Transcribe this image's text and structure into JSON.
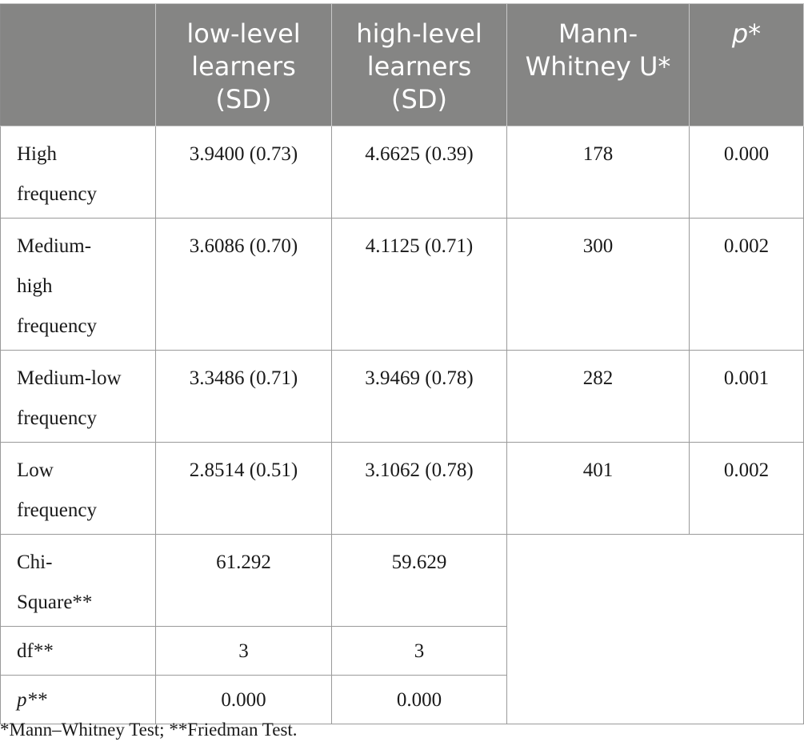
{
  "table": {
    "headers": [
      {
        "text": "",
        "italic": false
      },
      {
        "text": "low-level learners (SD)",
        "italic": false
      },
      {
        "text": "high-level learners (SD)",
        "italic": false
      },
      {
        "text": "Mann-Whitney U*",
        "italic": false
      },
      {
        "text": "p*",
        "italic": true
      }
    ],
    "rows": [
      {
        "label": "High frequency",
        "low": "3.9400 (0.73)",
        "high": "4.6625 (0.39)",
        "mw": "178",
        "p": "0.000"
      },
      {
        "label": "Medium-high frequency",
        "low": "3.6086 (0.70)",
        "high": "4.1125 (0.71)",
        "mw": "300",
        "p": "0.002"
      },
      {
        "label": "Medium-low frequency",
        "low": "3.3486 (0.71)",
        "high": "3.9469 (0.78)",
        "mw": "282",
        "p": "0.001"
      },
      {
        "label": "Low frequency",
        "low": "2.8514 (0.51)",
        "high": "3.1062 (0.78)",
        "mw": "401",
        "p": "0.002"
      }
    ],
    "friedman_rows": [
      {
        "label": "Chi-Square**",
        "italic": false,
        "low": "61.292",
        "high": "59.629"
      },
      {
        "label": "df**",
        "italic": false,
        "low": "3",
        "high": "3"
      },
      {
        "label": "p**",
        "italic": true,
        "low": "0.000",
        "high": "0.000"
      }
    ]
  },
  "footnote": "*Mann–Whitney Test; **Friedman Test."
}
